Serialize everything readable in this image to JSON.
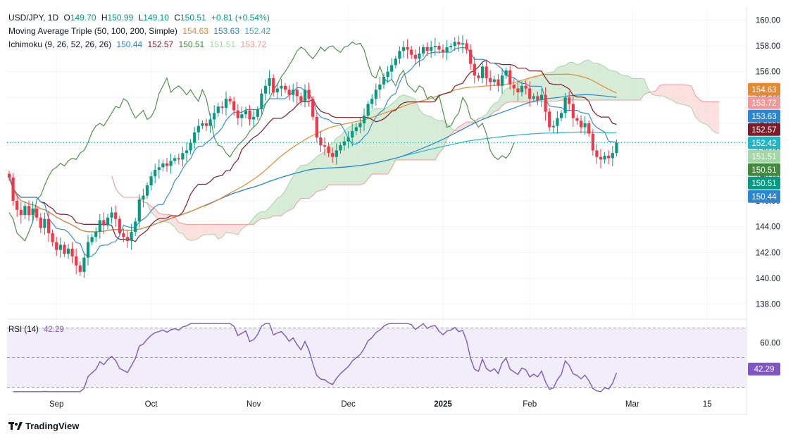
{
  "header": {
    "symbol": "USD/JPY, 1D",
    "ohlc": {
      "o_label": "O",
      "o": "149.70",
      "h_label": "H",
      "h": "150.99",
      "l_label": "L",
      "l": "149.10",
      "c_label": "C",
      "c": "150.51",
      "change": "+0.81 (+0.54%)"
    },
    "ma_title": "Moving Average Triple (50, 100, 200, Simple)",
    "ma_values": [
      "154.63",
      "153.63",
      "152.42"
    ],
    "ichimoku_title": "Ichimoku (9, 26, 52, 26, 26)",
    "ichimoku_values": [
      "150.44",
      "152.57",
      "150.51",
      "151.51",
      "153.72"
    ]
  },
  "colors": {
    "up": "#089981",
    "down": "#f23645",
    "ma50": "#e58a2f",
    "ma100": "#2a86d1",
    "ma200": "#21b6c6",
    "conversion": "#2a86d1",
    "base": "#7b1d2a",
    "lagging": "#43883f",
    "spanA": "#a5d6a7",
    "spanB": "#ef9a9a",
    "cloudUp": "#c8e6c9",
    "cloudDown": "#fbd5d5",
    "rsi": "#7e57c2",
    "rsiBand": "#ede7f6"
  },
  "chart_data": {
    "type": "candlestick",
    "price_axis": {
      "range": [
        137,
        161
      ],
      "ticks": [
        "138.00",
        "140.00",
        "142.00",
        "144.00",
        "146.00",
        "148.00",
        "150.00",
        "152.00",
        "154.00",
        "156.00",
        "158.00",
        "160.00"
      ]
    },
    "time_axis": {
      "labels": [
        "Sep",
        "Oct",
        "Nov",
        "Dec",
        "2025",
        "Feb",
        "Mar",
        "15"
      ]
    },
    "last_price": 150.51,
    "price_tags": [
      {
        "value": "154.63",
        "color": "#e58a2f"
      },
      {
        "value": "153.72",
        "color": "#ef9a9a"
      },
      {
        "value": "153.63",
        "color": "#2a86d1"
      },
      {
        "value": "152.57",
        "color": "#7b1d2a"
      },
      {
        "value": "152.42",
        "color": "#21b6c6"
      },
      {
        "value": "151.51",
        "color": "#a5d6a7"
      },
      {
        "value": "150.51",
        "color": "#43883f"
      },
      {
        "value": "150.51",
        "color": "#089981"
      },
      {
        "value": "150.44",
        "color": "#2a86d1"
      }
    ],
    "closes": [
      147.8,
      146.0,
      145.3,
      144.9,
      145.6,
      144.9,
      145.4,
      144.7,
      143.9,
      144.6,
      143.5,
      142.8,
      142.2,
      142.6,
      141.9,
      142.3,
      141.7,
      141.0,
      140.5,
      141.6,
      142.8,
      143.2,
      143.6,
      144.5,
      144.1,
      144.7,
      145.1,
      144.6,
      143.5,
      143.2,
      142.9,
      143.6,
      144.4,
      146.1,
      146.4,
      147.2,
      147.9,
      148.4,
      148.6,
      148.9,
      148.7,
      149.1,
      149.3,
      149.2,
      149.7,
      149.9,
      150.5,
      151.3,
      151.8,
      152.0,
      151.8,
      152.3,
      152.8,
      153.3,
      153.2,
      153.9,
      153.7,
      153.0,
      152.4,
      152.7,
      153.0,
      152.3,
      152.5,
      153.1,
      154.3,
      154.9,
      155.5,
      154.4,
      154.7,
      154.9,
      154.6,
      154.2,
      154.6,
      154.1,
      153.7,
      154.6,
      153.9,
      152.5,
      150.9,
      150.3,
      150.2,
      149.7,
      149.4,
      149.9,
      150.3,
      150.6,
      150.9,
      151.4,
      151.7,
      152.0,
      152.6,
      153.5,
      153.9,
      154.6,
      155.0,
      155.6,
      156.0,
      156.5,
      157.0,
      157.6,
      157.9,
      157.7,
      157.3,
      157.0,
      157.4,
      157.9,
      157.6,
      157.9,
      158.0,
      157.7,
      157.5,
      157.9,
      158.0,
      158.3,
      158.1,
      158.2,
      157.7,
      156.6,
      155.7,
      155.5,
      156.4,
      155.5,
      155.2,
      155.4,
      154.9,
      155.7,
      156.1,
      155.0,
      154.7,
      154.4,
      154.9,
      154.7,
      153.9,
      154.1,
      153.8,
      154.2,
      152.9,
      151.7,
      151.8,
      152.4,
      152.8,
      154.0,
      153.5,
      152.4,
      152.2,
      151.7,
      152.0,
      151.2,
      149.9,
      149.4,
      149.2,
      149.5,
      149.3,
      149.7,
      150.5
    ],
    "rsi": {
      "name": "RSI (14)",
      "value": "42.29",
      "ticks": [
        "60.00"
      ],
      "range": [
        25,
        75
      ],
      "band": [
        30,
        70
      ]
    }
  }
}
